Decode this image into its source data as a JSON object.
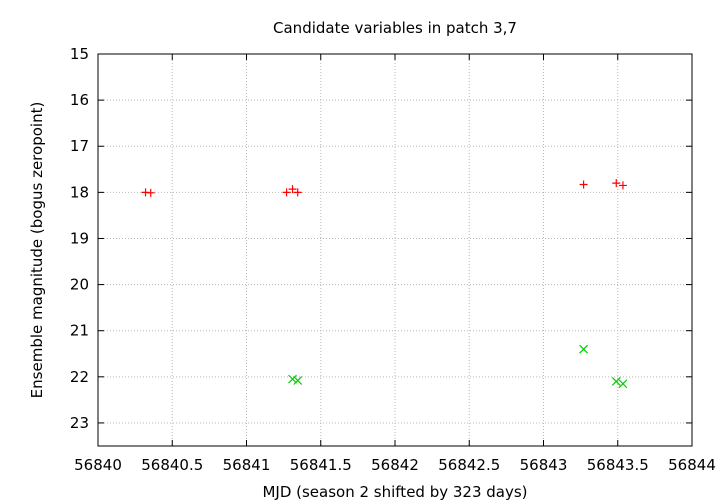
{
  "chart_data": {
    "type": "scatter",
    "title": "Candidate variables in patch 3,7",
    "xlabel": "MJD (season 2 shifted by 323 days)",
    "ylabel": "Ensemble magnitude (bogus zeropoint)",
    "xlim": [
      56840,
      56844
    ],
    "ylim": [
      23.5,
      15
    ],
    "y_inverted": true,
    "x_ticks": [
      56840,
      56840.5,
      56841,
      56841.5,
      56842,
      56842.5,
      56843,
      56843.5,
      56844
    ],
    "x_tick_labels": [
      "56840",
      "56840.5",
      "56841",
      "56841.5",
      "56842",
      "56842.5",
      "56843",
      "56843.5",
      "56844"
    ],
    "y_ticks": [
      15,
      16,
      17,
      18,
      19,
      20,
      21,
      22,
      23
    ],
    "y_tick_labels": [
      "15",
      "16",
      "17",
      "18",
      "19",
      "20",
      "21",
      "22",
      "23"
    ],
    "grid": true,
    "series": [
      {
        "marker": "plus",
        "color": "#ff0000",
        "points": [
          [
            56840.32,
            18.0
          ],
          [
            56840.355,
            18.01
          ],
          [
            56841.27,
            18.0
          ],
          [
            56841.31,
            17.93
          ],
          [
            56841.345,
            18.0
          ],
          [
            56843.27,
            17.83
          ],
          [
            56843.49,
            17.8
          ],
          [
            56843.535,
            17.85
          ]
        ]
      },
      {
        "marker": "cross",
        "color": "#00cc00",
        "points": [
          [
            56841.31,
            22.05
          ],
          [
            56841.345,
            22.08
          ],
          [
            56843.27,
            21.4
          ],
          [
            56843.49,
            22.1
          ],
          [
            56843.535,
            22.15
          ]
        ]
      }
    ]
  }
}
